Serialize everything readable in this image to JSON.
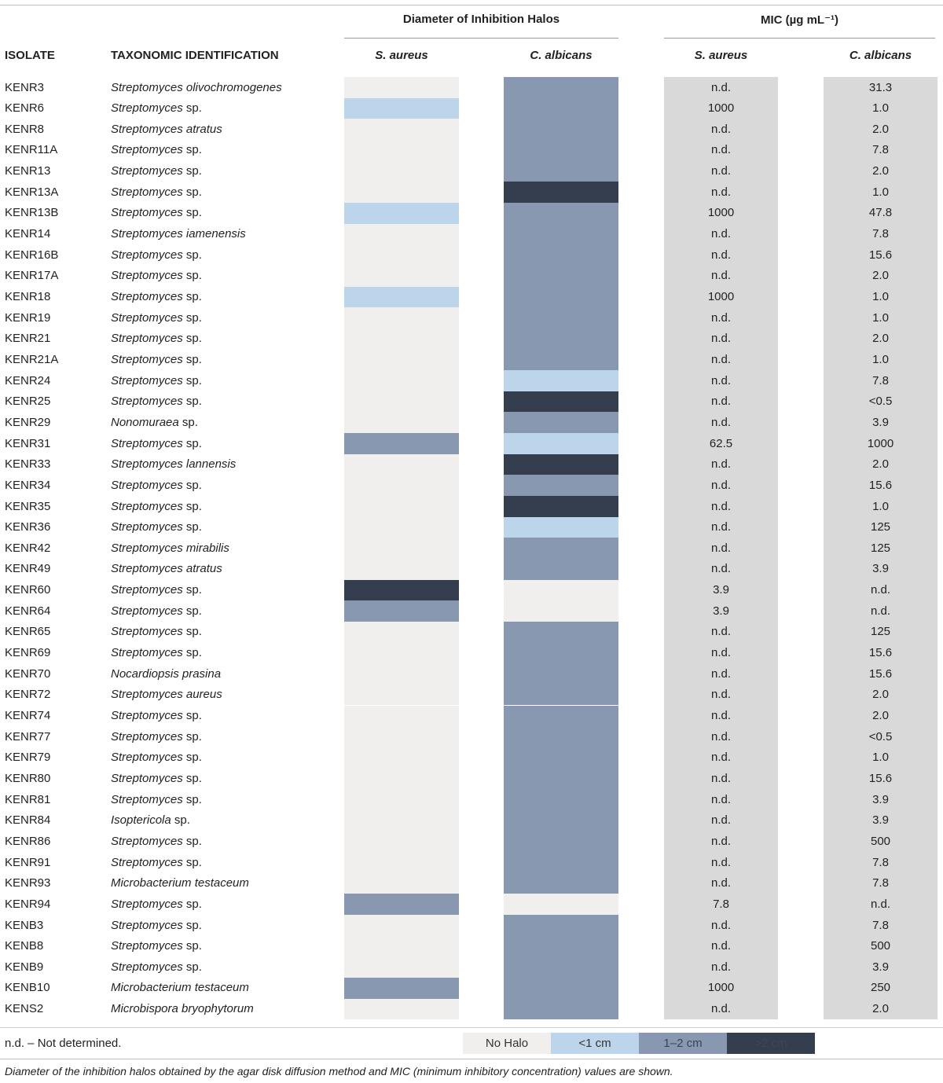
{
  "header": {
    "group_halos": "Diameter of Inhibition Halos",
    "group_mic": "MIC (µg mL⁻¹)",
    "col_isolate": "ISOLATE",
    "col_taxon": "TAXONOMIC IDENTIFICATION",
    "col_sa": "S. aureus",
    "col_ca": "C. albicans",
    "col_mic_sa": "S. aureus",
    "col_mic_ca": "C. albicans"
  },
  "colors": {
    "none": "#f0efee",
    "lt1": "#bdd5ea",
    "mid": "#8798b0",
    "gt2": "#343e4f",
    "mic_bg": "#d9d9d9"
  },
  "rows": [
    {
      "isolate": "KENR3",
      "genus": "Streptomyces olivochromogenes",
      "suffix": "",
      "sa": "none",
      "ca": "mid",
      "mic_sa": "n.d.",
      "mic_ca": "31.3"
    },
    {
      "isolate": "KENR6",
      "genus": "Streptomyces",
      "suffix": " sp.",
      "sa": "lt1",
      "ca": "mid",
      "mic_sa": "1000",
      "mic_ca": "1.0"
    },
    {
      "isolate": "KENR8",
      "genus": "Streptomyces atratus",
      "suffix": "",
      "sa": "none",
      "ca": "mid",
      "mic_sa": "n.d.",
      "mic_ca": "2.0"
    },
    {
      "isolate": "KENR11A",
      "genus": "Streptomyces",
      "suffix": " sp.",
      "sa": "none",
      "ca": "mid",
      "mic_sa": "n.d.",
      "mic_ca": "7.8"
    },
    {
      "isolate": "KENR13",
      "genus": "Streptomyces",
      "suffix": " sp.",
      "sa": "none",
      "ca": "mid",
      "mic_sa": "n.d.",
      "mic_ca": "2.0"
    },
    {
      "isolate": "KENR13A",
      "genus": "Streptomyces",
      "suffix": " sp.",
      "sa": "none",
      "ca": "gt2",
      "mic_sa": "n.d.",
      "mic_ca": "1.0"
    },
    {
      "isolate": "KENR13B",
      "genus": "Streptomyces",
      "suffix": " sp.",
      "sa": "lt1",
      "ca": "mid",
      "mic_sa": "1000",
      "mic_ca": "47.8"
    },
    {
      "isolate": "KENR14",
      "genus": "Streptomyces iamenensis",
      "suffix": "",
      "sa": "none",
      "ca": "mid",
      "mic_sa": "n.d.",
      "mic_ca": "7.8"
    },
    {
      "isolate": "KENR16B",
      "genus": "Streptomyces",
      "suffix": " sp.",
      "sa": "none",
      "ca": "mid",
      "mic_sa": "n.d.",
      "mic_ca": "15.6"
    },
    {
      "isolate": "KENR17A",
      "genus": "Streptomyces",
      "suffix": " sp.",
      "sa": "none",
      "ca": "mid",
      "mic_sa": "n.d.",
      "mic_ca": "2.0"
    },
    {
      "isolate": "KENR18",
      "genus": "Streptomyces",
      "suffix": " sp.",
      "sa": "lt1",
      "ca": "mid",
      "mic_sa": "1000",
      "mic_ca": "1.0"
    },
    {
      "isolate": "KENR19",
      "genus": "Streptomyces",
      "suffix": " sp.",
      "sa": "none",
      "ca": "mid",
      "mic_sa": "n.d.",
      "mic_ca": "1.0"
    },
    {
      "isolate": "KENR21",
      "genus": "Streptomyces",
      "suffix": " sp.",
      "sa": "none",
      "ca": "mid",
      "mic_sa": "n.d.",
      "mic_ca": "2.0"
    },
    {
      "isolate": "KENR21A",
      "genus": "Streptomyces",
      "suffix": " sp.",
      "sa": "none",
      "ca": "mid",
      "mic_sa": "n.d.",
      "mic_ca": "1.0"
    },
    {
      "isolate": "KENR24",
      "genus": "Streptomyces",
      "suffix": " sp.",
      "sa": "none",
      "ca": "lt1",
      "mic_sa": "n.d.",
      "mic_ca": "7.8"
    },
    {
      "isolate": "KENR25",
      "genus": "Streptomyces",
      "suffix": " sp.",
      "sa": "none",
      "ca": "gt2",
      "mic_sa": "n.d.",
      "mic_ca": "<0.5"
    },
    {
      "isolate": "KENR29",
      "genus": "Nonomuraea",
      "suffix": " sp.",
      "sa": "none",
      "ca": "mid",
      "mic_sa": "n.d.",
      "mic_ca": "3.9"
    },
    {
      "isolate": "KENR31",
      "genus": "Streptomyces",
      "suffix": " sp.",
      "sa": "mid",
      "ca": "lt1",
      "mic_sa": "62.5",
      "mic_ca": "1000"
    },
    {
      "isolate": "KENR33",
      "genus": "Streptomyces lannensis",
      "suffix": "",
      "sa": "none",
      "ca": "gt2",
      "mic_sa": "n.d.",
      "mic_ca": "2.0"
    },
    {
      "isolate": "KENR34",
      "genus": "Streptomyces",
      "suffix": " sp.",
      "sa": "none",
      "ca": "mid",
      "mic_sa": "n.d.",
      "mic_ca": "15.6"
    },
    {
      "isolate": "KENR35",
      "genus": "Streptomyces",
      "suffix": " sp.",
      "sa": "none",
      "ca": "gt2",
      "mic_sa": "n.d.",
      "mic_ca": "1.0"
    },
    {
      "isolate": "KENR36",
      "genus": "Streptomyces",
      "suffix": " sp.",
      "sa": "none",
      "ca": "lt1",
      "mic_sa": "n.d.",
      "mic_ca": "125"
    },
    {
      "isolate": "KENR42",
      "genus": "Streptomyces mirabilis",
      "suffix": "",
      "sa": "none",
      "ca": "mid",
      "mic_sa": "n.d.",
      "mic_ca": "125"
    },
    {
      "isolate": "KENR49",
      "genus": "Streptomyces atratus",
      "suffix": "",
      "sa": "none",
      "ca": "mid",
      "mic_sa": "n.d.",
      "mic_ca": "3.9"
    },
    {
      "isolate": "KENR60",
      "genus": "Streptomyces",
      "suffix": " sp.",
      "sa": "gt2",
      "ca": "none",
      "mic_sa": "3.9",
      "mic_ca": "n.d."
    },
    {
      "isolate": "KENR64",
      "genus": "Streptomyces",
      "suffix": " sp.",
      "sa": "mid",
      "ca": "none",
      "mic_sa": "3.9",
      "mic_ca": "n.d."
    },
    {
      "isolate": "KENR65",
      "genus": "Streptomyces",
      "suffix": " sp.",
      "sa": "none",
      "ca": "mid",
      "mic_sa": "n.d.",
      "mic_ca": "125"
    },
    {
      "isolate": "KENR69",
      "genus": "Streptomyces",
      "suffix": " sp.",
      "sa": "none",
      "ca": "mid",
      "mic_sa": "n.d.",
      "mic_ca": "15.6"
    },
    {
      "isolate": "KENR70",
      "genus": "Nocardiopsis prasina",
      "suffix": "",
      "sa": "none",
      "ca": "mid",
      "mic_sa": "n.d.",
      "mic_ca": "15.6"
    },
    {
      "isolate": "KENR72",
      "genus": "Streptomyces aureus",
      "suffix": "",
      "sa": "none",
      "ca": "mid",
      "mic_sa": "n.d.",
      "mic_ca": "2.0"
    },
    {
      "isolate": "KENR74",
      "genus": "Streptomyces",
      "suffix": " sp.",
      "sa": "none",
      "ca": "mid",
      "mic_sa": "n.d.",
      "mic_ca": "2.0"
    },
    {
      "isolate": "KENR77",
      "genus": "Streptomyces",
      "suffix": " sp.",
      "sa": "none",
      "ca": "mid",
      "mic_sa": "n.d.",
      "mic_ca": "<0.5"
    },
    {
      "isolate": "KENR79",
      "genus": "Streptomyces",
      "suffix": " sp.",
      "sa": "none",
      "ca": "mid",
      "mic_sa": "n.d.",
      "mic_ca": "1.0"
    },
    {
      "isolate": "KENR80",
      "genus": "Streptomyces",
      "suffix": " sp.",
      "sa": "none",
      "ca": "mid",
      "mic_sa": "n.d.",
      "mic_ca": "15.6"
    },
    {
      "isolate": "KENR81",
      "genus": "Streptomyces",
      "suffix": " sp.",
      "sa": "none",
      "ca": "mid",
      "mic_sa": "n.d.",
      "mic_ca": "3.9"
    },
    {
      "isolate": "KENR84",
      "genus": "Isoptericola",
      "suffix": " sp.",
      "sa": "none",
      "ca": "mid",
      "mic_sa": "n.d.",
      "mic_ca": "3.9"
    },
    {
      "isolate": "KENR86",
      "genus": "Streptomyces",
      "suffix": " sp.",
      "sa": "none",
      "ca": "mid",
      "mic_sa": "n.d.",
      "mic_ca": "500"
    },
    {
      "isolate": "KENR91",
      "genus": "Streptomyces",
      "suffix": " sp.",
      "sa": "none",
      "ca": "mid",
      "mic_sa": "n.d.",
      "mic_ca": "7.8"
    },
    {
      "isolate": "KENR93",
      "genus": "Microbacterium testaceum",
      "suffix": "",
      "sa": "none",
      "ca": "mid",
      "mic_sa": "n.d.",
      "mic_ca": "7.8"
    },
    {
      "isolate": "KENR94",
      "genus": "Streptomyces",
      "suffix": " sp.",
      "sa": "mid",
      "ca": "none",
      "mic_sa": "7.8",
      "mic_ca": "n.d."
    },
    {
      "isolate": "KENB3",
      "genus": "Streptomyces",
      "suffix": " sp.",
      "sa": "none",
      "ca": "mid",
      "mic_sa": "n.d.",
      "mic_ca": "7.8"
    },
    {
      "isolate": "KENB8",
      "genus": "Streptomyces",
      "suffix": " sp.",
      "sa": "none",
      "ca": "mid",
      "mic_sa": "n.d.",
      "mic_ca": "500"
    },
    {
      "isolate": "KENB9",
      "genus": "Streptomyces",
      "suffix": " sp.",
      "sa": "none",
      "ca": "mid",
      "mic_sa": "n.d.",
      "mic_ca": "3.9"
    },
    {
      "isolate": "KENB10",
      "genus": "Microbacterium testaceum",
      "suffix": "",
      "sa": "mid",
      "ca": "mid",
      "mic_sa": "1000",
      "mic_ca": "250"
    },
    {
      "isolate": "KENS2",
      "genus": "Microbispora bryophytorum",
      "suffix": "",
      "sa": "none",
      "ca": "mid",
      "mic_sa": "n.d.",
      "mic_ca": "2.0"
    }
  ],
  "footer": {
    "note": "n.d. – Not determined.",
    "legend": [
      {
        "label": "No Halo",
        "color": "none",
        "text_color": "#333333"
      },
      {
        "label": "<1 cm",
        "color": "lt1",
        "text_color": "#333333"
      },
      {
        "label": "1–2 cm",
        "color": "mid",
        "text_color": "#3a4454"
      },
      {
        "label": ">2 cm",
        "color": "gt2",
        "text_color": "#3d4758"
      }
    ],
    "caption": "Diameter of the inhibition halos obtained by the agar disk diffusion method and MIC (minimum inhibitory concentration) values are shown."
  }
}
